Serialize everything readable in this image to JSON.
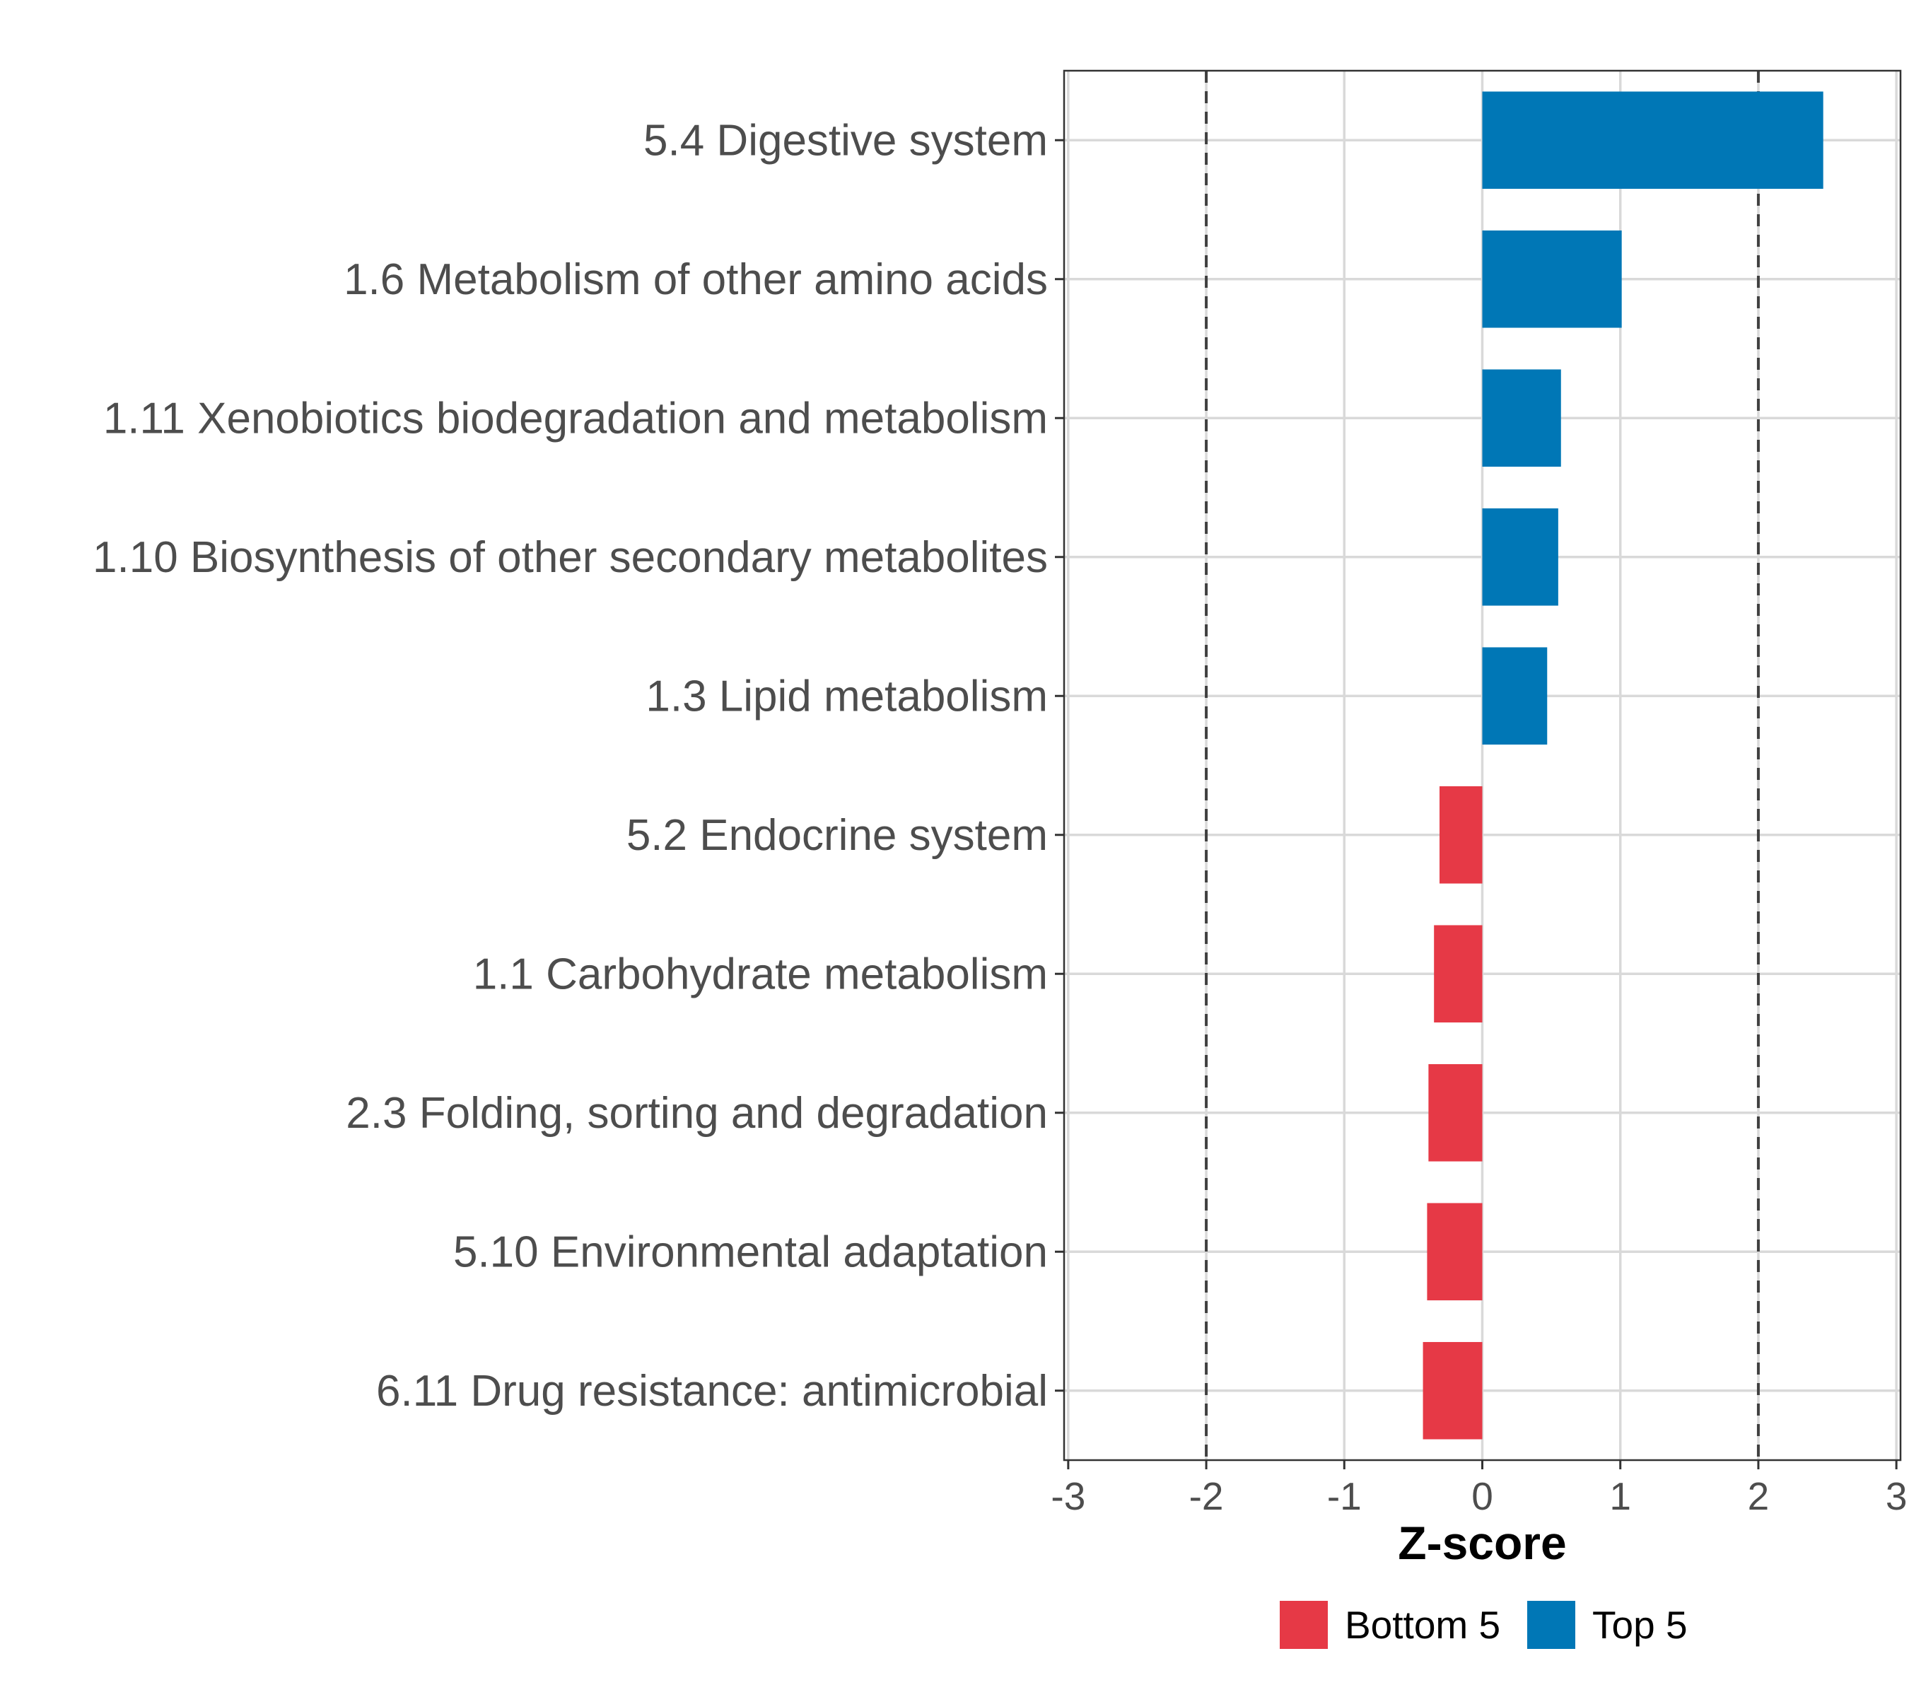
{
  "chart_data": {
    "type": "bar",
    "orientation": "horizontal",
    "categories": [
      "5.4 Digestive system",
      "1.6 Metabolism of other amino acids",
      "1.11 Xenobiotics biodegradation and metabolism",
      "1.10 Biosynthesis of other secondary metabolites",
      "1.3 Lipid metabolism",
      "5.2 Endocrine system",
      "1.1 Carbohydrate metabolism",
      "2.3 Folding, sorting and degradation",
      "5.10 Environmental adaptation",
      "6.11 Drug resistance: antimicrobial"
    ],
    "values": [
      2.47,
      1.01,
      0.57,
      0.55,
      0.47,
      -0.31,
      -0.35,
      -0.39,
      -0.4,
      -0.43
    ],
    "groups": [
      "Top 5",
      "Top 5",
      "Top 5",
      "Top 5",
      "Top 5",
      "Bottom 5",
      "Bottom 5",
      "Bottom 5",
      "Bottom 5",
      "Bottom 5"
    ],
    "xlabel": "Z-score",
    "ylabel": "",
    "xlim": [
      -3.03,
      3.03
    ],
    "xticks": [
      -3,
      -2,
      -1,
      0,
      1,
      2,
      3
    ],
    "xtick_labels": [
      "-3",
      "-2",
      "-1",
      "0",
      "1",
      "2",
      "3"
    ],
    "reference_lines": [
      -2,
      2
    ],
    "grid": true,
    "legend": {
      "position": "bottom",
      "items": [
        {
          "label": "Bottom 5",
          "color": "#E63946"
        },
        {
          "label": "Top 5",
          "color": "#0077B6"
        }
      ]
    }
  }
}
